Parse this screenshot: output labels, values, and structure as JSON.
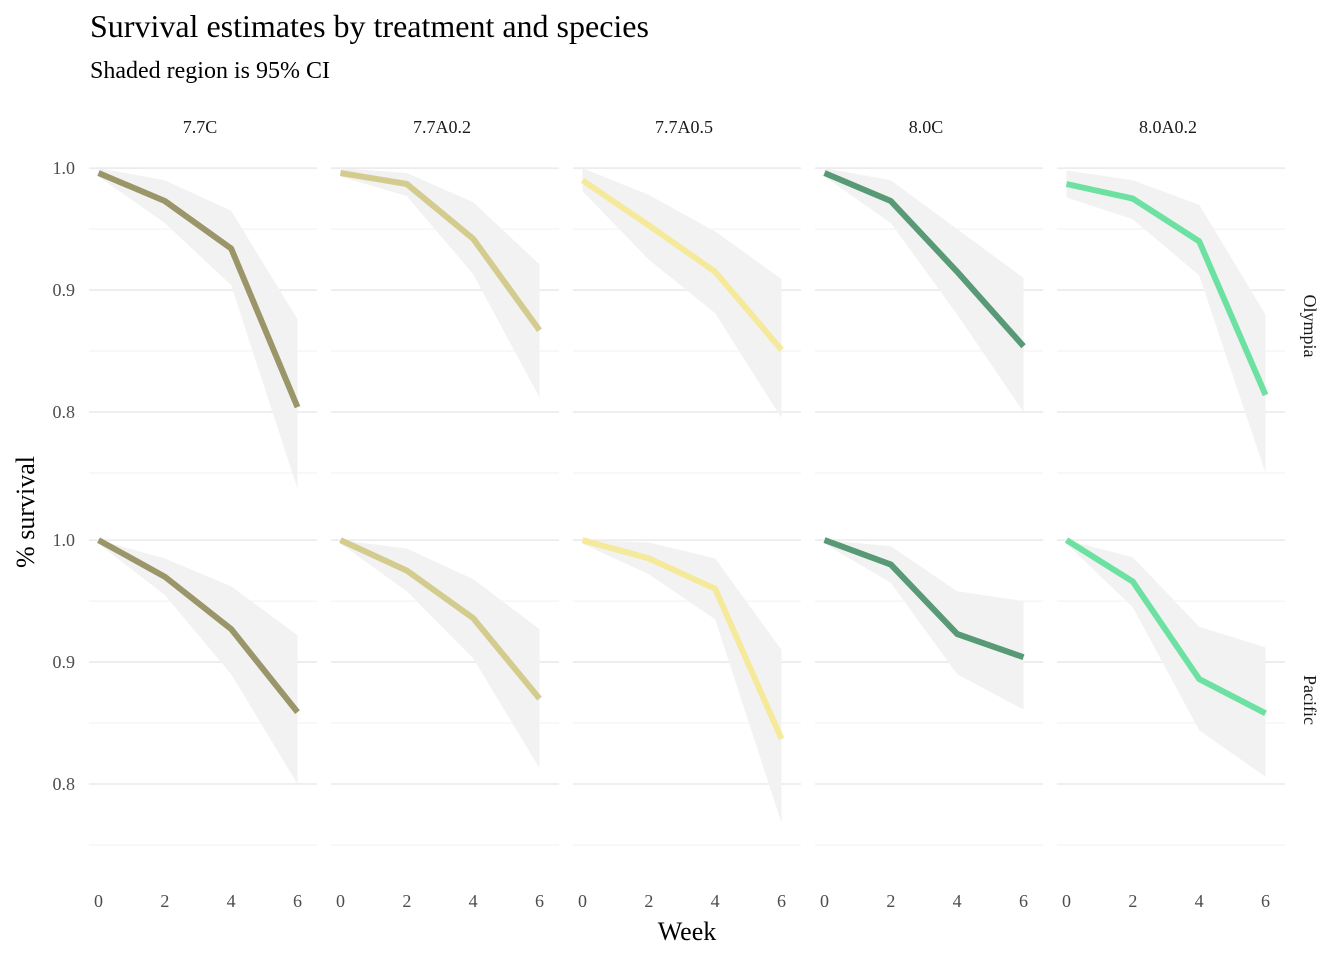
{
  "chart_data": {
    "type": "line",
    "title": "Survival estimates by treatment and species",
    "subtitle": "Shaded region is 95% CI",
    "xlabel": "Week",
    "ylabel": "% survival",
    "x": [
      0,
      2,
      4,
      6
    ],
    "x_ticks": [
      "0",
      "2",
      "4",
      "6"
    ],
    "y_ticks": [
      "0.8",
      "0.9",
      "1.0"
    ],
    "ylim": [
      0.75,
      1.005
    ],
    "columns": [
      "7.7C",
      "7.7A0.2",
      "7.7A0.5",
      "8.0C",
      "8.0A0.2"
    ],
    "rows": [
      "Olympia",
      "Pacific"
    ],
    "colors": {
      "7.7C": "#9b9669",
      "7.7A0.2": "#d3cc8e",
      "7.7A0.5": "#f5ea9b",
      "8.0C": "#579a75",
      "8.0A0.2": "#6de1a1"
    },
    "ribbon_color": "#f2f2f2",
    "panels": [
      {
        "row": "Olympia",
        "column": "7.7C",
        "values": [
          0.996,
          0.973,
          0.934,
          0.804
        ],
        "lower": [
          0.993,
          0.955,
          0.904,
          0.737
        ],
        "upper": [
          1.0,
          0.99,
          0.965,
          0.876
        ]
      },
      {
        "row": "Olympia",
        "column": "7.7A0.2",
        "values": [
          0.996,
          0.987,
          0.942,
          0.867
        ],
        "lower": [
          0.993,
          0.977,
          0.913,
          0.812
        ],
        "upper": [
          1.0,
          0.996,
          0.972,
          0.921
        ]
      },
      {
        "row": "Olympia",
        "column": "7.7A0.5",
        "values": [
          0.99,
          0.953,
          0.915,
          0.851
        ],
        "lower": [
          0.981,
          0.925,
          0.881,
          0.795
        ],
        "upper": [
          1.0,
          0.978,
          0.948,
          0.909
        ]
      },
      {
        "row": "Olympia",
        "column": "8.0C",
        "values": [
          0.996,
          0.973,
          0.915,
          0.854
        ],
        "lower": [
          0.993,
          0.955,
          0.88,
          0.8
        ],
        "upper": [
          1.0,
          0.99,
          0.95,
          0.91
        ]
      },
      {
        "row": "Olympia",
        "column": "8.0A0.2",
        "values": [
          0.987,
          0.975,
          0.94,
          0.814
        ],
        "lower": [
          0.976,
          0.958,
          0.912,
          0.75
        ],
        "upper": [
          0.998,
          0.99,
          0.97,
          0.88
        ]
      },
      {
        "row": "Pacific",
        "column": "7.7C",
        "values": [
          1.0,
          0.97,
          0.927,
          0.859
        ],
        "lower": [
          0.997,
          0.955,
          0.89,
          0.8
        ],
        "upper": [
          1.0,
          0.985,
          0.962,
          0.922
        ]
      },
      {
        "row": "Pacific",
        "column": "7.7A0.2",
        "values": [
          1.0,
          0.975,
          0.936,
          0.87
        ],
        "lower": [
          0.997,
          0.958,
          0.903,
          0.813
        ],
        "upper": [
          1.0,
          0.993,
          0.968,
          0.927
        ]
      },
      {
        "row": "Pacific",
        "column": "7.7A0.5",
        "values": [
          1.0,
          0.985,
          0.96,
          0.837
        ],
        "lower": [
          0.997,
          0.972,
          0.935,
          0.768
        ],
        "upper": [
          1.0,
          0.998,
          0.985,
          0.91
        ]
      },
      {
        "row": "Pacific",
        "column": "8.0C",
        "values": [
          1.0,
          0.98,
          0.923,
          0.904
        ],
        "lower": [
          0.997,
          0.965,
          0.89,
          0.861
        ],
        "upper": [
          1.0,
          0.995,
          0.958,
          0.95
        ]
      },
      {
        "row": "Pacific",
        "column": "8.0A0.2",
        "values": [
          1.0,
          0.966,
          0.886,
          0.858
        ],
        "lower": [
          0.997,
          0.945,
          0.844,
          0.806
        ],
        "upper": [
          1.0,
          0.986,
          0.929,
          0.912
        ]
      }
    ]
  }
}
